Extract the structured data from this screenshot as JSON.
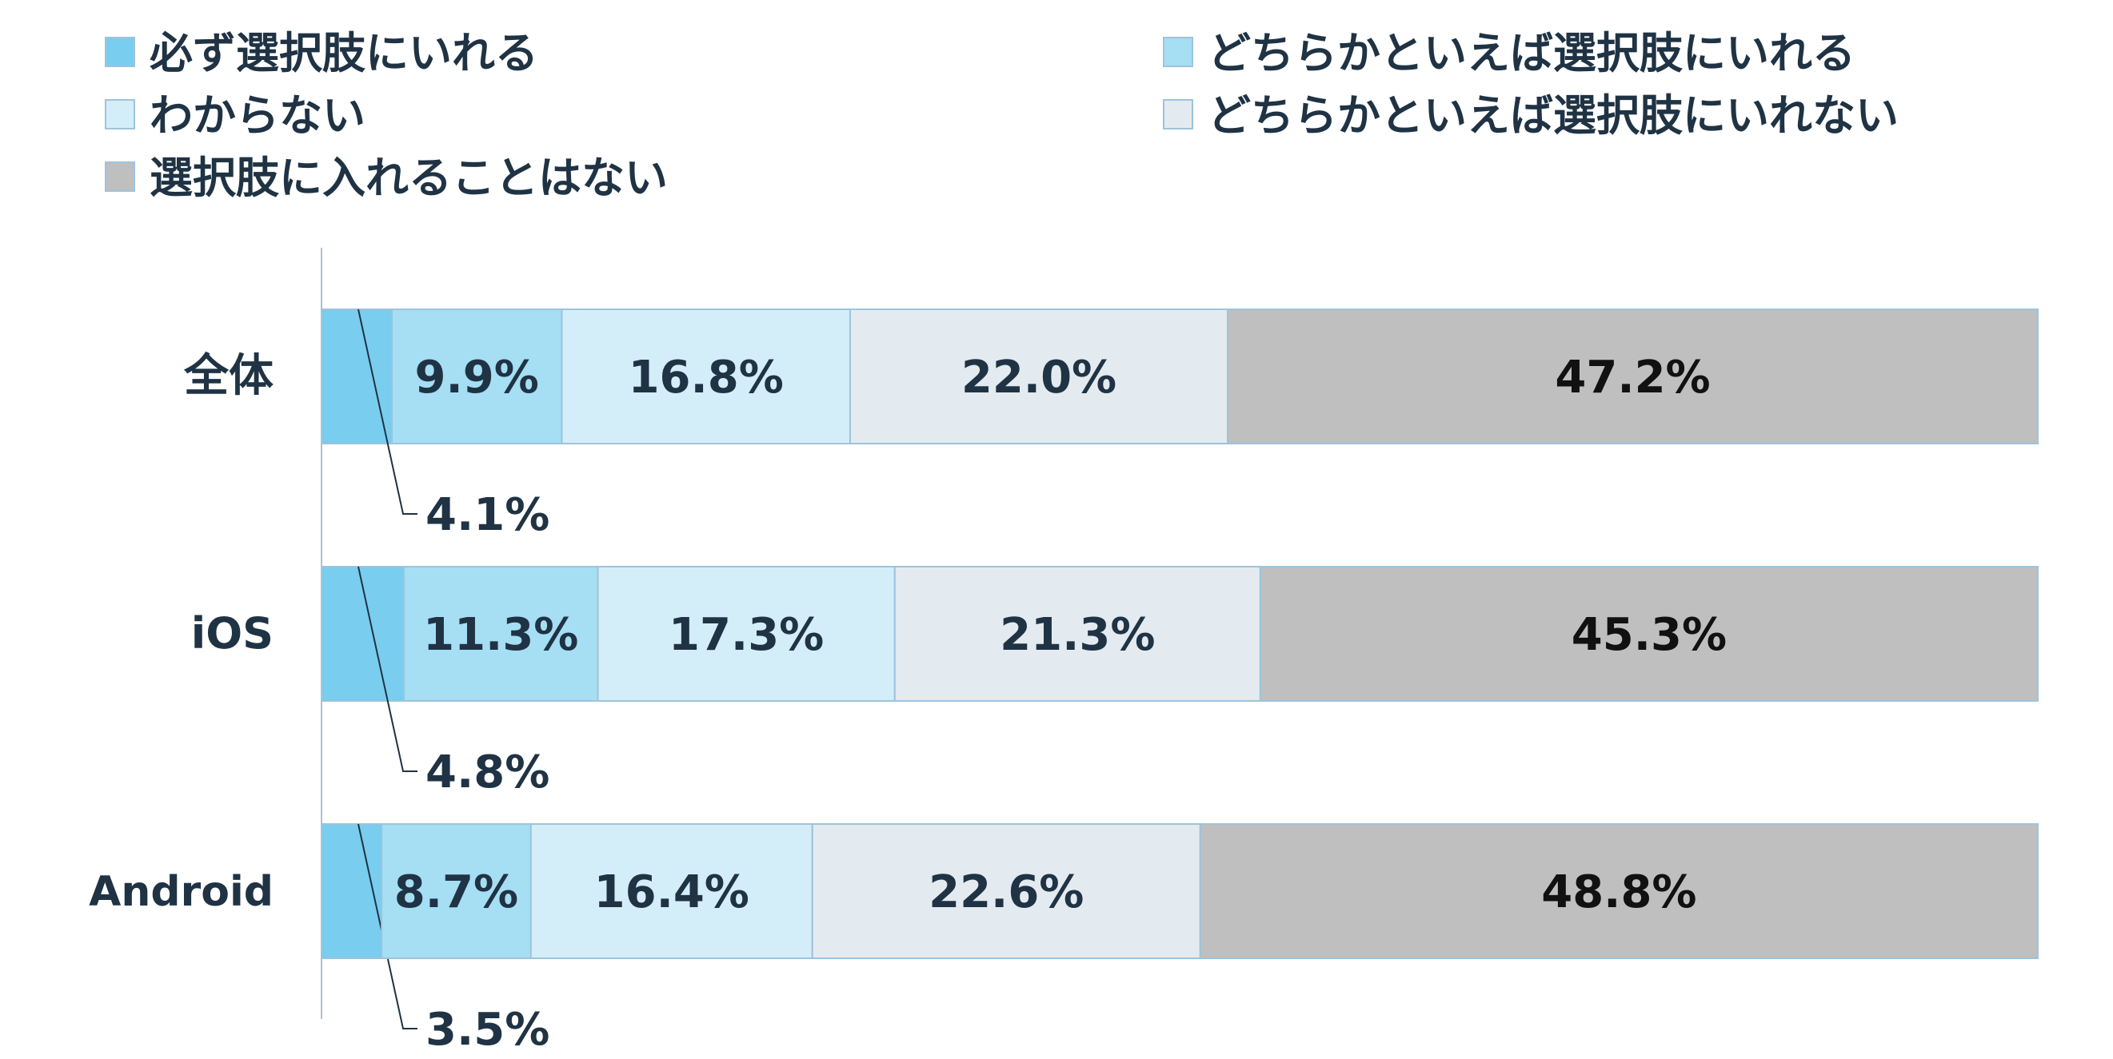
{
  "chart_data": {
    "type": "bar",
    "orientation": "horizontal",
    "stacked": true,
    "percent": true,
    "categories": [
      "全体",
      "iOS",
      "Android"
    ],
    "series": [
      {
        "name": "必ず選択肢にいれる",
        "values": [
          4.1,
          4.8,
          3.5
        ],
        "color": "#79cdee"
      },
      {
        "name": "どちらかといえば選択肢にいれる",
        "values": [
          9.9,
          11.3,
          8.7
        ],
        "color": "#a6def4"
      },
      {
        "name": "わからない",
        "values": [
          16.8,
          17.3,
          16.4
        ],
        "color": "#d4eef9"
      },
      {
        "name": "どちらかといえば選択肢にいれない",
        "values": [
          22.0,
          21.3,
          22.6
        ],
        "color": "#e3ebf0"
      },
      {
        "name": "選択肢に入れることはない",
        "values": [
          47.2,
          45.3,
          48.8
        ],
        "color": "#bfbfbf"
      }
    ],
    "value_labels": [
      [
        "4.1%",
        "9.9%",
        "16.8%",
        "22.0%",
        "47.2%"
      ],
      [
        "4.8%",
        "11.3%",
        "17.3%",
        "21.3%",
        "45.3%"
      ],
      [
        "3.5%",
        "8.7%",
        "16.4%",
        "22.6%",
        "48.8%"
      ]
    ],
    "xlim": [
      0,
      100
    ],
    "legend_position": "top",
    "grid": false,
    "colors": {
      "text": "#1f3344",
      "axis": "#a8c4d8",
      "bar_border": "#9ec3dc"
    }
  }
}
